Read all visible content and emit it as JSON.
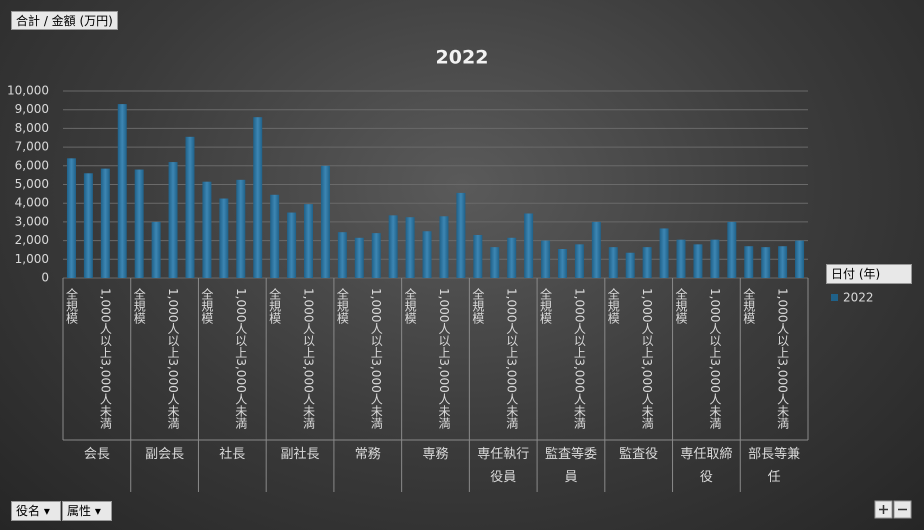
{
  "chart_data": {
    "type": "bar",
    "title": "2022",
    "field_button": "合計 / 金額 (万円)",
    "legend_title": "日付 (年)",
    "row_buttons": [
      "役名",
      "属性"
    ],
    "groups": [
      "会長",
      "副会長",
      "社長",
      "副社長",
      "常務",
      "専務",
      "専任執行役員",
      "監査等委員",
      "監査役",
      "専任取締役",
      "部長等兼任"
    ],
    "categories": [
      "全規模",
      null,
      "1,000人以上3,000人未満",
      null,
      "全規模",
      null,
      "1,000人以上3,000人未満",
      null,
      "全規模",
      null,
      "1,000人以上3,000人未満",
      null,
      "全規模",
      null,
      "1,000人以上3,000人未満",
      null,
      "全規模",
      null,
      "1,000人以上3,000人未満",
      null,
      "全規模",
      null,
      "1,000人以上3,000人未満",
      null,
      "全規模",
      null,
      "1,000人以上3,000人未満",
      null,
      "全規模",
      null,
      "1,000人以上3,000人未満",
      null,
      "全規模",
      null,
      "1,000人以上3,000人未満",
      null,
      "全規模",
      null,
      "1,000人以上3,000人未満",
      null,
      "全規模",
      null,
      "1,000人以上3,000人未満",
      null
    ],
    "series": [
      {
        "name": "2022",
        "color": "#1f6189",
        "values": [
          6400,
          5600,
          5850,
          9300,
          5800,
          3000,
          6200,
          7550,
          5150,
          4250,
          5250,
          8600,
          4450,
          3500,
          3950,
          6000,
          2450,
          2150,
          2400,
          3350,
          3250,
          2500,
          3300,
          4550,
          2300,
          1650,
          2150,
          3450,
          2000,
          1550,
          1800,
          3000,
          1650,
          1350,
          1650,
          2650,
          2050,
          1800,
          2050,
          3000,
          1700,
          1650,
          1700,
          2000
        ]
      }
    ],
    "ylim": [
      0,
      10000
    ],
    "yticks": [
      0,
      {
        "value": 1000,
        "label": "1,000"
      },
      {
        "value": 2000,
        "label": "2,000"
      },
      {
        "value": 3000,
        "label": "3,000"
      },
      {
        "value": 4000,
        "label": "4,000"
      },
      {
        "value": 5000,
        "label": "5,000"
      },
      {
        "value": 6000,
        "label": "6,000"
      },
      {
        "value": 7000,
        "label": "7,000"
      },
      {
        "value": 8000,
        "label": "8,000"
      },
      {
        "value": 9000,
        "label": "9,000"
      },
      {
        "value": 10000,
        "label": "10,000"
      }
    ],
    "grid": true
  }
}
